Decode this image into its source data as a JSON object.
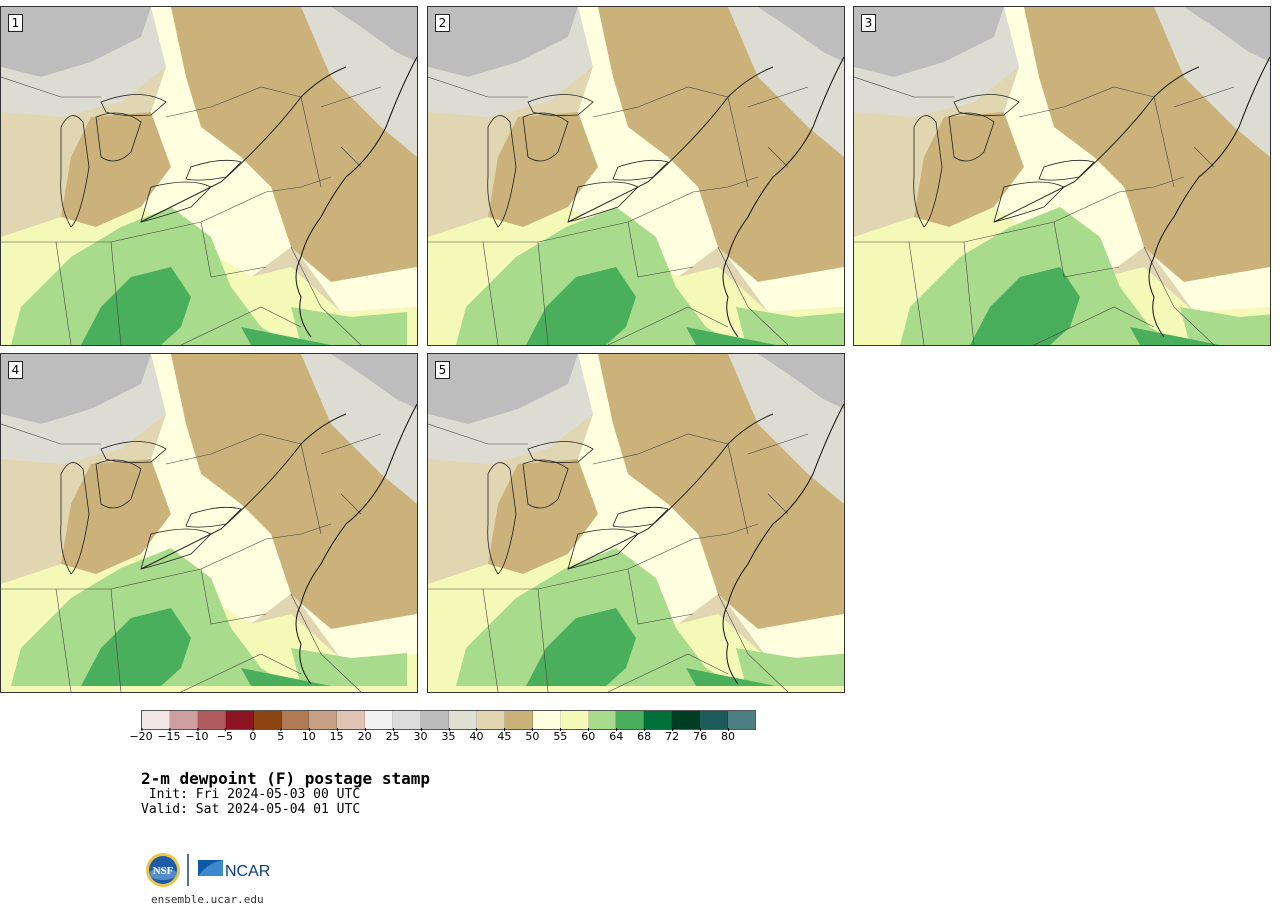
{
  "panels": [
    {
      "label": "1"
    },
    {
      "label": "2"
    },
    {
      "label": "3"
    },
    {
      "label": "4"
    },
    {
      "label": "5"
    }
  ],
  "colorbar": {
    "colors": [
      "#f2e6e6",
      "#cf9ea0",
      "#ae5a5e",
      "#8b1522",
      "#8b4513",
      "#ae7b55",
      "#c6a085",
      "#dfc4b5",
      "#f2f2f2",
      "#dcdcdc",
      "#bcbcbc",
      "#e0e0d4",
      "#e2d6b0",
      "#cbb27b",
      "#ffffe0",
      "#f5f9b8",
      "#a8dc8c",
      "#4aaf5c",
      "#00703a",
      "#003d22",
      "#1d5b5b",
      "#4d7f82"
    ],
    "ticks": [
      "−20",
      "−15",
      "−10",
      "−5",
      "0",
      "5",
      "10",
      "15",
      "20",
      "25",
      "30",
      "35",
      "40",
      "45",
      "50",
      "55",
      "60",
      "64",
      "68",
      "72",
      "76",
      "80"
    ]
  },
  "title": "2-m dewpoint (F) postage stamp",
  "init": " Init: Fri 2024-05-03 00 UTC",
  "valid": "Valid: Sat 2024-05-04 01 UTC",
  "logo": {
    "nsf": "NSF",
    "ncar": "NCAR"
  },
  "url": "ensemble.ucar.edu"
}
